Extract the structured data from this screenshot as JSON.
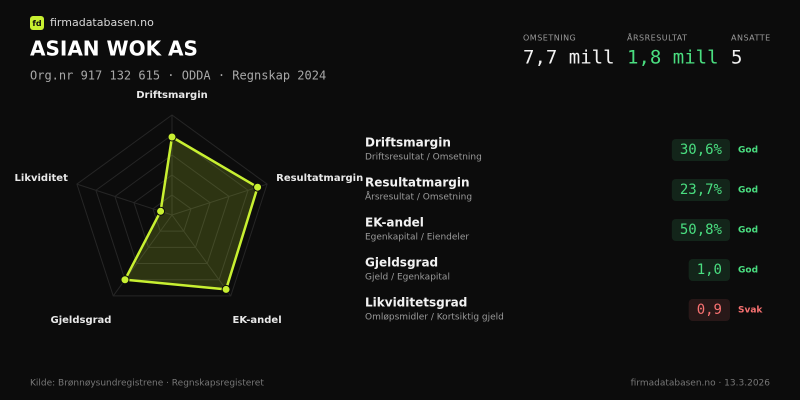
{
  "brand": {
    "logo": "fd",
    "name": "firmadatabasen.no"
  },
  "header": {
    "title": "ASIAN WOK AS",
    "subtitle": "Org.nr 917 132 615 · ODDA · Regnskap 2024"
  },
  "kpis": [
    {
      "label": "OMSETNING",
      "value": "7,7 mill",
      "color": "#f2f2f2"
    },
    {
      "label": "ÅRSRESULTAT",
      "value": "1,8 mill",
      "color": "#4ade80"
    },
    {
      "label": "ANSATTE",
      "value": "5",
      "color": "#f2f2f2"
    }
  ],
  "radar": {
    "labels": [
      "Driftsmargin",
      "Resultatmargin",
      "EK-andel",
      "Gjeldsgrad",
      "Likviditet"
    ],
    "values": [
      78,
      90,
      92,
      80,
      12
    ],
    "rlim": [
      0,
      100
    ],
    "color": "#c8f031"
  },
  "metrics": [
    {
      "name": "Driftsmargin",
      "formula": "Driftsresultat / Omsetning",
      "value": "30,6%",
      "rating": "God",
      "color": "#4ade80"
    },
    {
      "name": "Resultatmargin",
      "formula": "Årsresultat / Omsetning",
      "value": "23,7%",
      "rating": "God",
      "color": "#4ade80"
    },
    {
      "name": "EK-andel",
      "formula": "Egenkapital / Eiendeler",
      "value": "50,8%",
      "rating": "God",
      "color": "#4ade80"
    },
    {
      "name": "Gjeldsgrad",
      "formula": "Gjeld / Egenkapital",
      "value": "1,0",
      "rating": "God",
      "color": "#4ade80"
    },
    {
      "name": "Likviditetsgrad",
      "formula": "Omløpsmidler / Kortsiktig gjeld",
      "value": "0,9",
      "rating": "Svak",
      "color": "#f87171"
    }
  ],
  "footer": {
    "source": "Kilde: Brønnøysundregistrene · Regnskapsregisteret",
    "site": "firmadatabasen.no · 13.3.2026"
  }
}
